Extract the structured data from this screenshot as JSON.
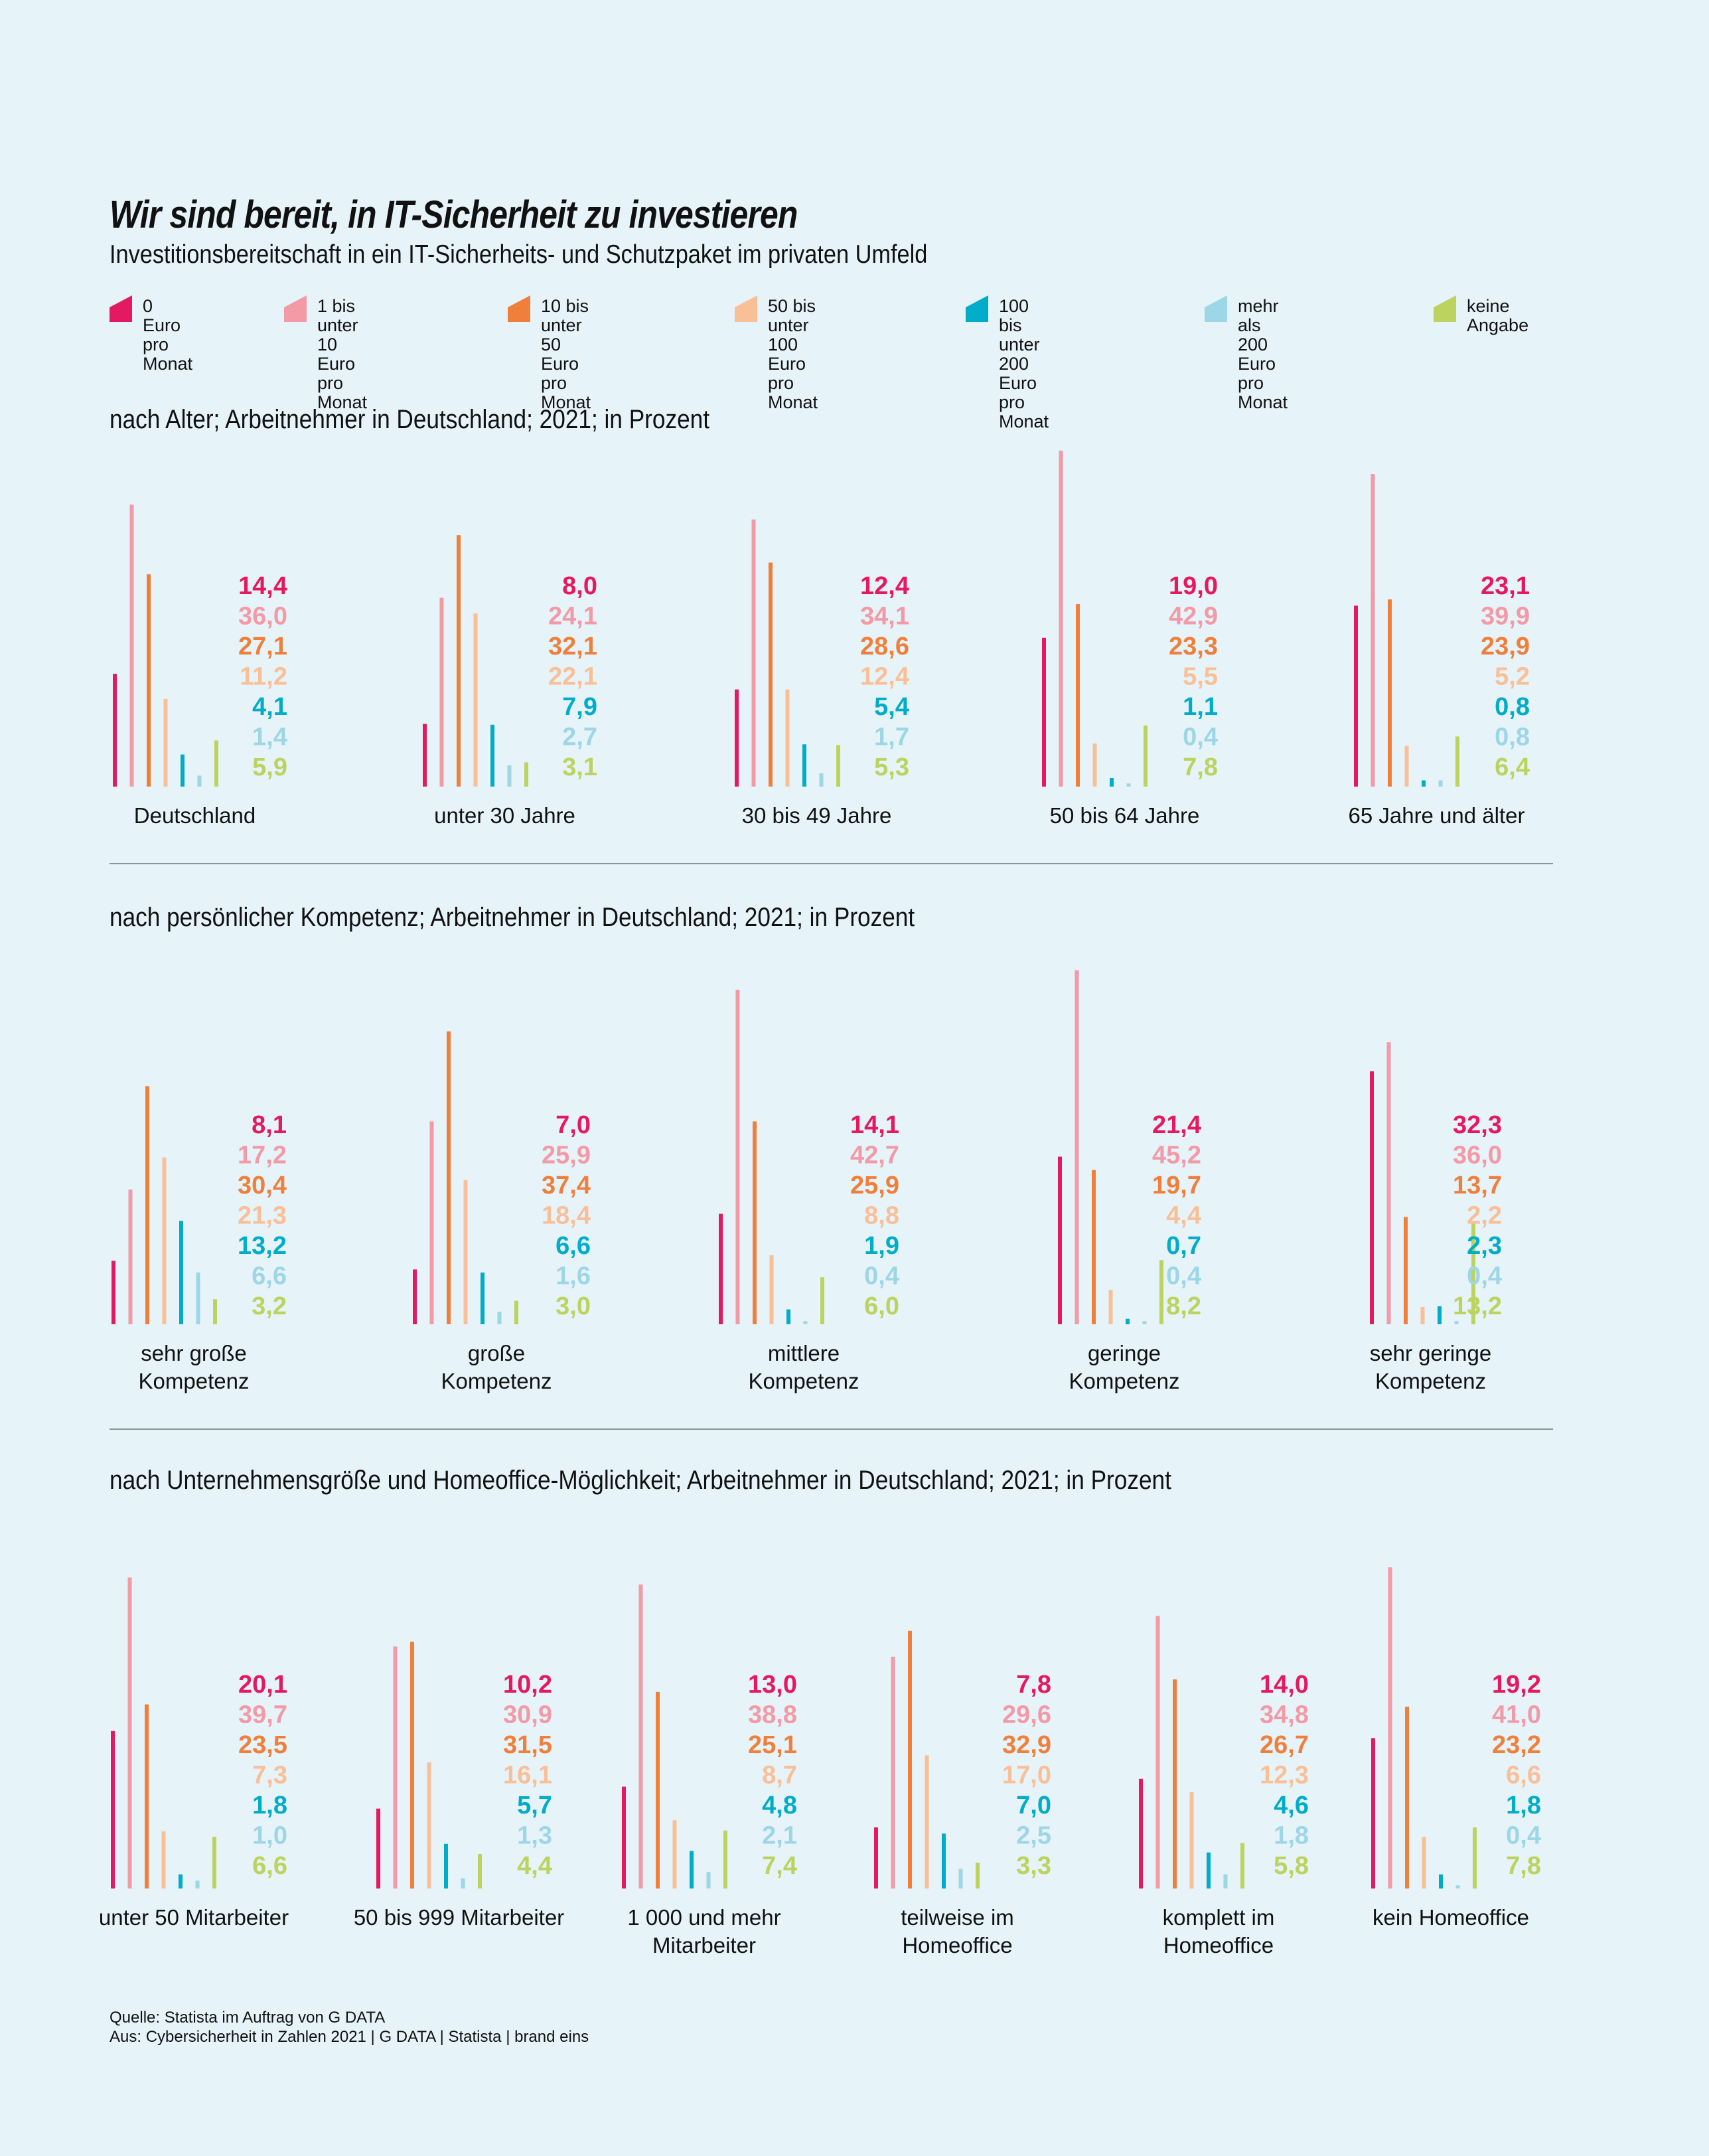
{
  "header": {
    "title": "Wir sind bereit, in IT-Sicherheit zu investieren",
    "subtitle": "Investitionsbereitschaft in ein IT-Sicherheits- und Schutzpaket im privaten Umfeld"
  },
  "legend": [
    {
      "label": "0 Euro pro\nMonat",
      "color": "#e5195f"
    },
    {
      "label": "1 bis unter 10\nEuro pro Monat",
      "color": "#f29aa6"
    },
    {
      "label": "10 bis unter 50\nEuro pro Monat",
      "color": "#f07f3c"
    },
    {
      "label": "50 bis unter 100\nEuro pro Monat",
      "color": "#f9bf97"
    },
    {
      "label": "100 bis unter 200\nEuro pro Monat",
      "color": "#00adc9"
    },
    {
      "label": "mehr als 200\nEuro pro Monat",
      "color": "#9dd6e6"
    },
    {
      "label": "keine\nAngabe",
      "color": "#bcd35f"
    }
  ],
  "footer": {
    "source_line": "Quelle: Statista im Auftrag von G DATA",
    "from_line": "Aus: Cybersicherheit in Zahlen 2021 | G DATA | Statista | brand eins"
  },
  "chart_data": [
    {
      "type": "bar",
      "title": "nach Alter; Arbeitnehmer in Deutschland; 2021; in Prozent",
      "unit": "Prozent",
      "series_names": [
        "0 Euro pro Monat",
        "1 bis unter 10 Euro pro Monat",
        "10 bis unter 50 Euro pro Monat",
        "50 bis unter 100 Euro pro Monat",
        "100 bis unter 200 Euro pro Monat",
        "mehr als 200 Euro pro Monat",
        "keine Angabe"
      ],
      "groups": [
        {
          "label": "Deutschland",
          "values": [
            14.4,
            36.0,
            27.1,
            11.2,
            4.1,
            1.4,
            5.9
          ],
          "labels": [
            "14,4",
            "36,0",
            "27,1",
            "11,2",
            "4,1",
            "1,4",
            "5,9"
          ]
        },
        {
          "label": "unter 30 Jahre",
          "values": [
            8.0,
            24.1,
            32.1,
            22.1,
            7.9,
            2.7,
            3.1
          ],
          "labels": [
            "8,0",
            "24,1",
            "32,1",
            "22,1",
            "7,9",
            "2,7",
            "3,1"
          ]
        },
        {
          "label": "30 bis 49 Jahre",
          "values": [
            12.4,
            34.1,
            28.6,
            12.4,
            5.4,
            1.7,
            5.3
          ],
          "labels": [
            "12,4",
            "34,1",
            "28,6",
            "12,4",
            "5,4",
            "1,7",
            "5,3"
          ]
        },
        {
          "label": "50 bis 64 Jahre",
          "values": [
            19.0,
            42.9,
            23.3,
            5.5,
            1.1,
            0.4,
            7.8
          ],
          "labels": [
            "19,0",
            "42,9",
            "23,3",
            "5,5",
            "1,1",
            "0,4",
            "7,8"
          ]
        },
        {
          "label": "65 Jahre und älter",
          "values": [
            23.1,
            39.9,
            23.9,
            5.2,
            0.8,
            0.8,
            6.4
          ],
          "labels": [
            "23,1",
            "39,9",
            "23,9",
            "5,2",
            "0,8",
            "0,8",
            "6,4"
          ]
        }
      ]
    },
    {
      "type": "bar",
      "title": "nach persönlicher Kompetenz; Arbeitnehmer in Deutschland; 2021; in Prozent",
      "unit": "Prozent",
      "series_names": [
        "0 Euro pro Monat",
        "1 bis unter 10 Euro pro Monat",
        "10 bis unter 50 Euro pro Monat",
        "50 bis unter 100 Euro pro Monat",
        "100 bis unter 200 Euro pro Monat",
        "mehr als 200 Euro pro Monat",
        "keine Angabe"
      ],
      "groups": [
        {
          "label": "sehr große\nKompetenz",
          "values": [
            8.1,
            17.2,
            30.4,
            21.3,
            13.2,
            6.6,
            3.2
          ],
          "labels": [
            "8,1",
            "17,2",
            "30,4",
            "21,3",
            "13,2",
            "6,6",
            "3,2"
          ]
        },
        {
          "label": "große\nKompetenz",
          "values": [
            7.0,
            25.9,
            37.4,
            18.4,
            6.6,
            1.6,
            3.0
          ],
          "labels": [
            "7,0",
            "25,9",
            "37,4",
            "18,4",
            "6,6",
            "1,6",
            "3,0"
          ]
        },
        {
          "label": "mittlere\nKompetenz",
          "values": [
            14.1,
            42.7,
            25.9,
            8.8,
            1.9,
            0.4,
            6.0
          ],
          "labels": [
            "14,1",
            "42,7",
            "25,9",
            "8,8",
            "1,9",
            "0,4",
            "6,0"
          ]
        },
        {
          "label": "geringe\nKompetenz",
          "values": [
            21.4,
            45.2,
            19.7,
            4.4,
            0.7,
            0.4,
            8.2
          ],
          "labels": [
            "21,4",
            "45,2",
            "19,7",
            "4,4",
            "0,7",
            "0,4",
            "8,2"
          ]
        },
        {
          "label": "sehr geringe\nKompetenz",
          "values": [
            32.3,
            36.0,
            13.7,
            2.2,
            2.3,
            0.4,
            13.2
          ],
          "labels": [
            "32,3",
            "36,0",
            "13,7",
            "2,2",
            "2,3",
            "0,4",
            "13,2"
          ]
        }
      ]
    },
    {
      "type": "bar",
      "title": "nach Unternehmensgröße und Homeoffice-Möglichkeit; Arbeitnehmer in Deutschland; 2021; in Prozent",
      "unit": "Prozent",
      "series_names": [
        "0 Euro pro Monat",
        "1 bis unter 10 Euro pro Monat",
        "10 bis unter 50 Euro pro Monat",
        "50 bis unter 100 Euro pro Monat",
        "100 bis unter 200 Euro pro Monat",
        "mehr als 200 Euro pro Monat",
        "keine Angabe"
      ],
      "groups": [
        {
          "label": "unter 50 Mitarbeiter",
          "values": [
            20.1,
            39.7,
            23.5,
            7.3,
            1.8,
            1.0,
            6.6
          ],
          "labels": [
            "20,1",
            "39,7",
            "23,5",
            "7,3",
            "1,8",
            "1,0",
            "6,6"
          ]
        },
        {
          "label": "50 bis 999 Mitarbeiter",
          "values": [
            10.2,
            30.9,
            31.5,
            16.1,
            5.7,
            1.3,
            4.4
          ],
          "labels": [
            "10,2",
            "30,9",
            "31,5",
            "16,1",
            "5,7",
            "1,3",
            "4,4"
          ]
        },
        {
          "label": "1 000 und mehr\nMitarbeiter",
          "values": [
            13.0,
            38.8,
            25.1,
            8.7,
            4.8,
            2.1,
            7.4
          ],
          "labels": [
            "13,0",
            "38,8",
            "25,1",
            "8,7",
            "4,8",
            "2,1",
            "7,4"
          ]
        },
        {
          "label": "teilweise im\nHomeoffice",
          "values": [
            7.8,
            29.6,
            32.9,
            17.0,
            7.0,
            2.5,
            3.3
          ],
          "labels": [
            "7,8",
            "29,6",
            "32,9",
            "17,0",
            "7,0",
            "2,5",
            "3,3"
          ]
        },
        {
          "label": "komplett im\nHomeoffice",
          "values": [
            14.0,
            34.8,
            26.7,
            12.3,
            4.6,
            1.8,
            5.8
          ],
          "labels": [
            "14,0",
            "34,8",
            "26,7",
            "12,3",
            "4,6",
            "1,8",
            "5,8"
          ]
        },
        {
          "label": "kein Homeoffice",
          "values": [
            19.2,
            41.0,
            23.2,
            6.6,
            1.8,
            0.4,
            7.8
          ],
          "labels": [
            "19,2",
            "41,0",
            "23,2",
            "6,6",
            "1,8",
            "0,4",
            "7,8"
          ]
        }
      ]
    }
  ]
}
